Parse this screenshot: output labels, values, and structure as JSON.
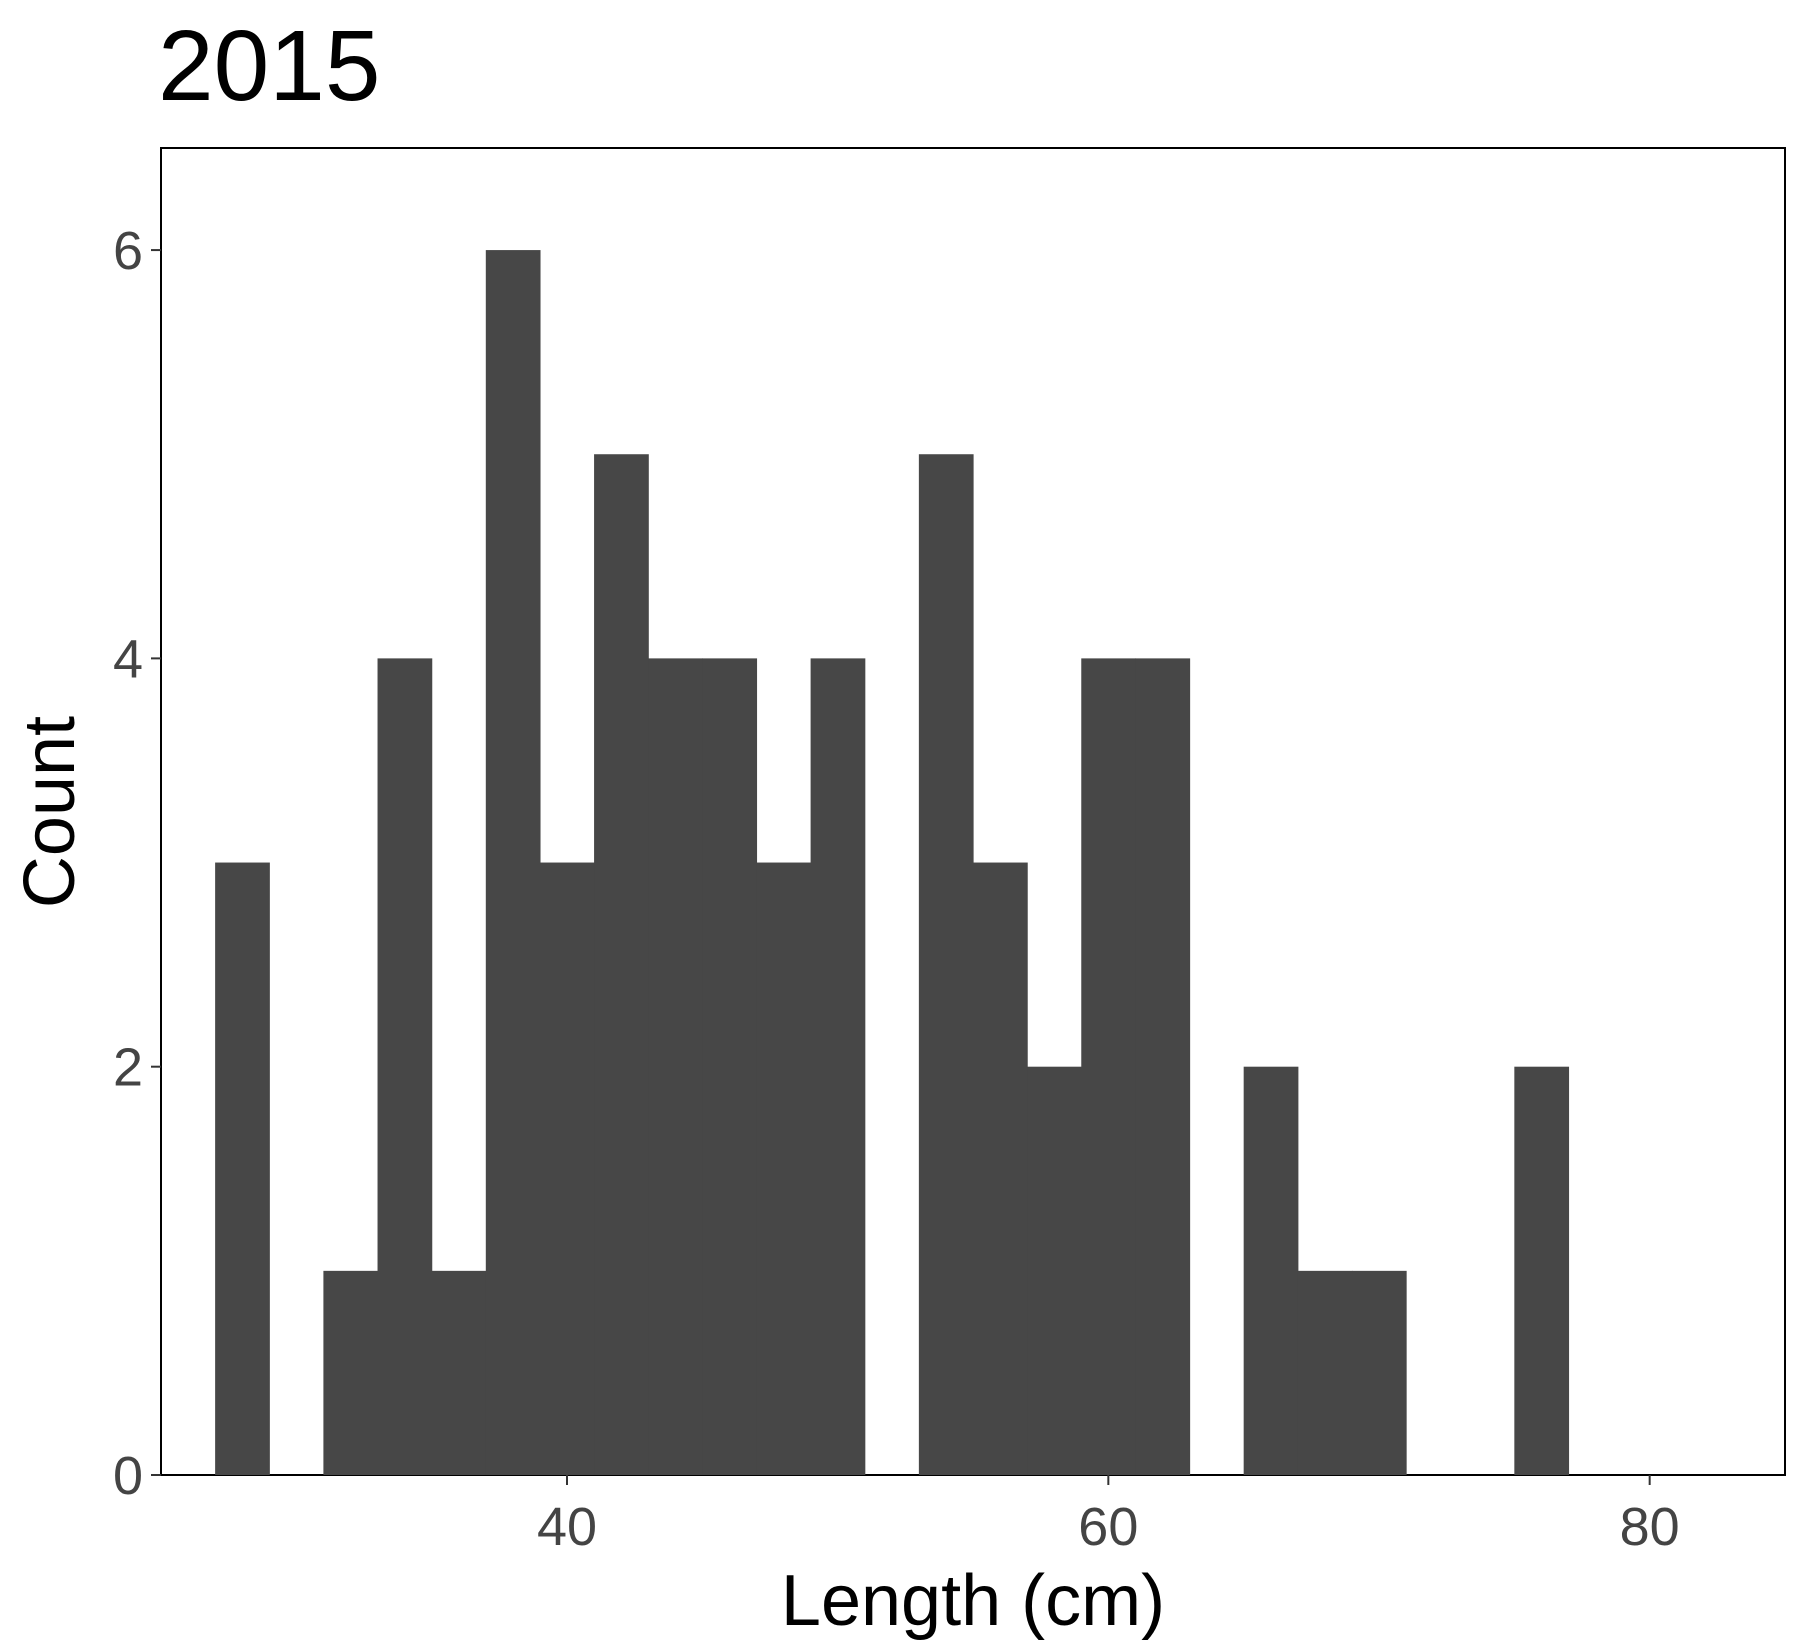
{
  "chart_data": {
    "type": "bar",
    "title": "2015",
    "xlabel": "Length (cm)",
    "ylabel": "Count",
    "xlim": [
      25,
      85
    ],
    "ylim": [
      0,
      6.5
    ],
    "xticks": [
      40,
      60,
      80
    ],
    "yticks": [
      0,
      2,
      4,
      6
    ],
    "bin_width": 2,
    "bins": [
      {
        "x0": 27,
        "x1": 29,
        "count": 3
      },
      {
        "x0": 29,
        "x1": 31,
        "count": 0
      },
      {
        "x0": 31,
        "x1": 33,
        "count": 1
      },
      {
        "x0": 33,
        "x1": 35,
        "count": 4
      },
      {
        "x0": 35,
        "x1": 37,
        "count": 1
      },
      {
        "x0": 37,
        "x1": 39,
        "count": 6
      },
      {
        "x0": 39,
        "x1": 41,
        "count": 3
      },
      {
        "x0": 41,
        "x1": 43,
        "count": 5
      },
      {
        "x0": 43,
        "x1": 45,
        "count": 4
      },
      {
        "x0": 45,
        "x1": 47,
        "count": 4
      },
      {
        "x0": 47,
        "x1": 49,
        "count": 3
      },
      {
        "x0": 49,
        "x1": 51,
        "count": 4
      },
      {
        "x0": 51,
        "x1": 53,
        "count": 0
      },
      {
        "x0": 53,
        "x1": 55,
        "count": 5
      },
      {
        "x0": 55,
        "x1": 57,
        "count": 3
      },
      {
        "x0": 57,
        "x1": 59,
        "count": 2
      },
      {
        "x0": 59,
        "x1": 61,
        "count": 4
      },
      {
        "x0": 61,
        "x1": 63,
        "count": 4
      },
      {
        "x0": 63,
        "x1": 65,
        "count": 0
      },
      {
        "x0": 65,
        "x1": 67,
        "count": 2
      },
      {
        "x0": 67,
        "x1": 69,
        "count": 1
      },
      {
        "x0": 69,
        "x1": 71,
        "count": 1
      },
      {
        "x0": 71,
        "x1": 73,
        "count": 0
      },
      {
        "x0": 73,
        "x1": 75,
        "count": 0
      },
      {
        "x0": 75,
        "x1": 77,
        "count": 2
      }
    ],
    "bar_color": "#474747",
    "grid": false,
    "legend": "none"
  }
}
